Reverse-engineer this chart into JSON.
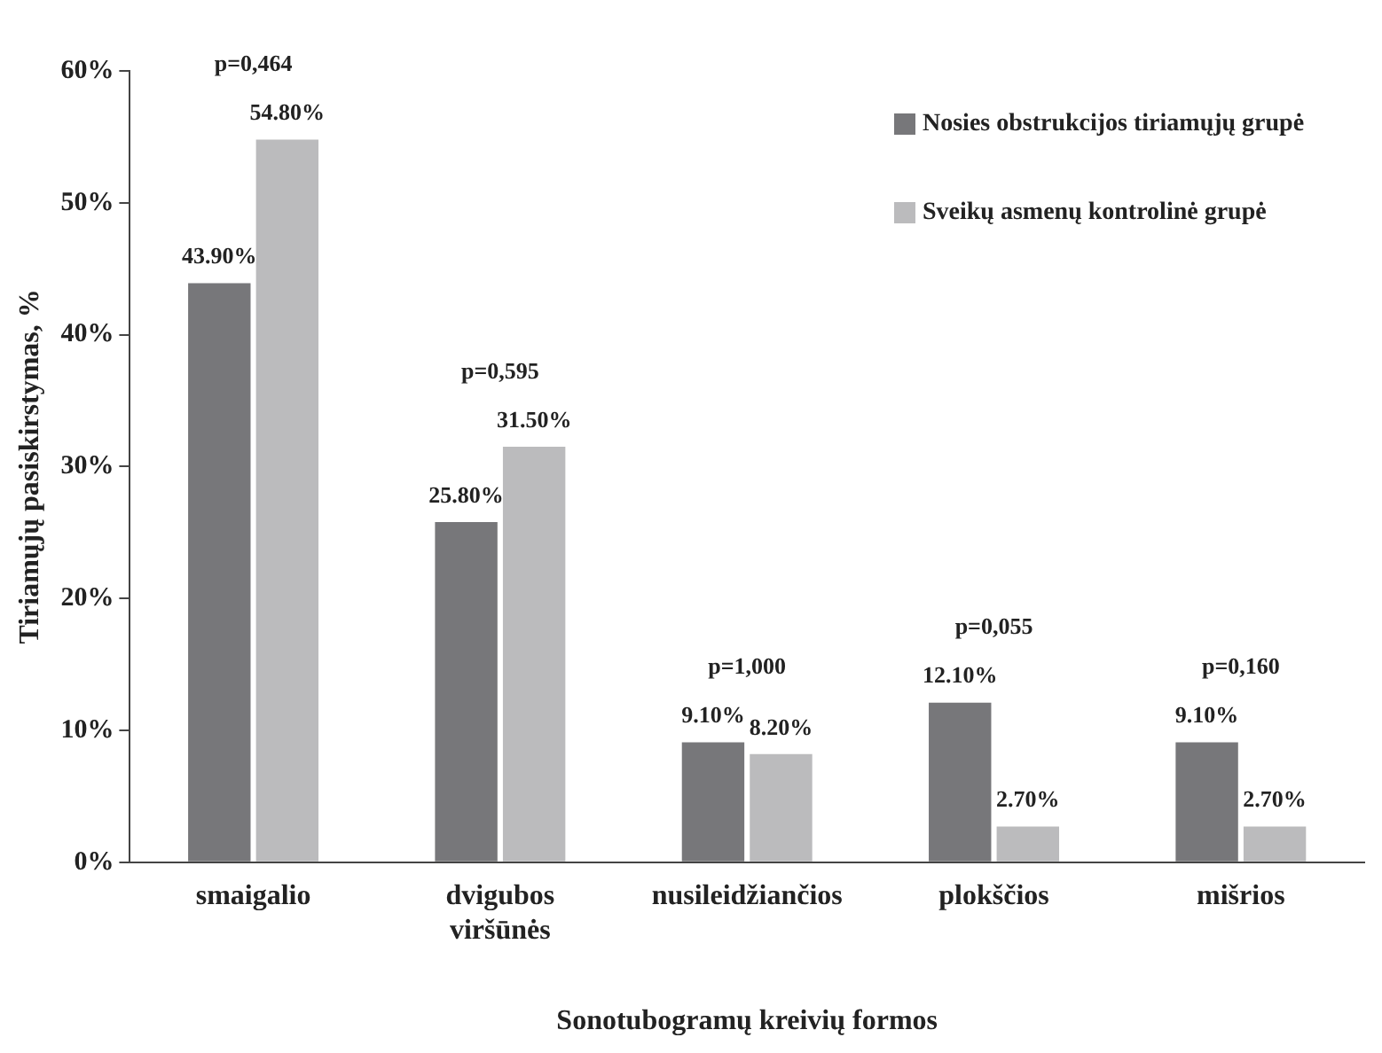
{
  "chart_data": {
    "type": "bar",
    "xlabel": "Sonotubogramų kreivių formos",
    "ylabel": "Tiriamųjų pasiskirstymas, %",
    "categories": [
      "smaigalio",
      "dvigubos viršūnės",
      "nusileidžiančios",
      "plokščios",
      "mišrios"
    ],
    "series": [
      {
        "name": "Nosies obstrukcijos tiriamųjų grupė",
        "color": "#77777a",
        "values": [
          43.9,
          25.8,
          9.1,
          12.1,
          9.1
        ],
        "value_labels": [
          "43.90%",
          "25.80%",
          "9.10%",
          "12.10%",
          "9.10%"
        ]
      },
      {
        "name": "Sveikų asmenų kontrolinė grupė",
        "color": "#bbbbbd",
        "values": [
          54.8,
          31.5,
          8.2,
          2.7,
          2.7
        ],
        "value_labels": [
          "54.80%",
          "31.50%",
          "8.20%",
          "2.70%",
          "2.70%"
        ]
      }
    ],
    "ylim": [
      0,
      60
    ],
    "yticks": [
      {
        "value": 0,
        "label": "0%"
      },
      {
        "value": 10,
        "label": "10%"
      },
      {
        "value": 20,
        "label": "20%"
      },
      {
        "value": 30,
        "label": "30%"
      },
      {
        "value": 40,
        "label": "40%"
      },
      {
        "value": 50,
        "label": "50%"
      },
      {
        "value": 60,
        "label": "60%"
      }
    ],
    "grid": false,
    "legend": "top right",
    "annotations": [
      "p=0,464",
      "p=0,595",
      "p=1,000",
      "p=0,055",
      "p=0,160"
    ]
  }
}
